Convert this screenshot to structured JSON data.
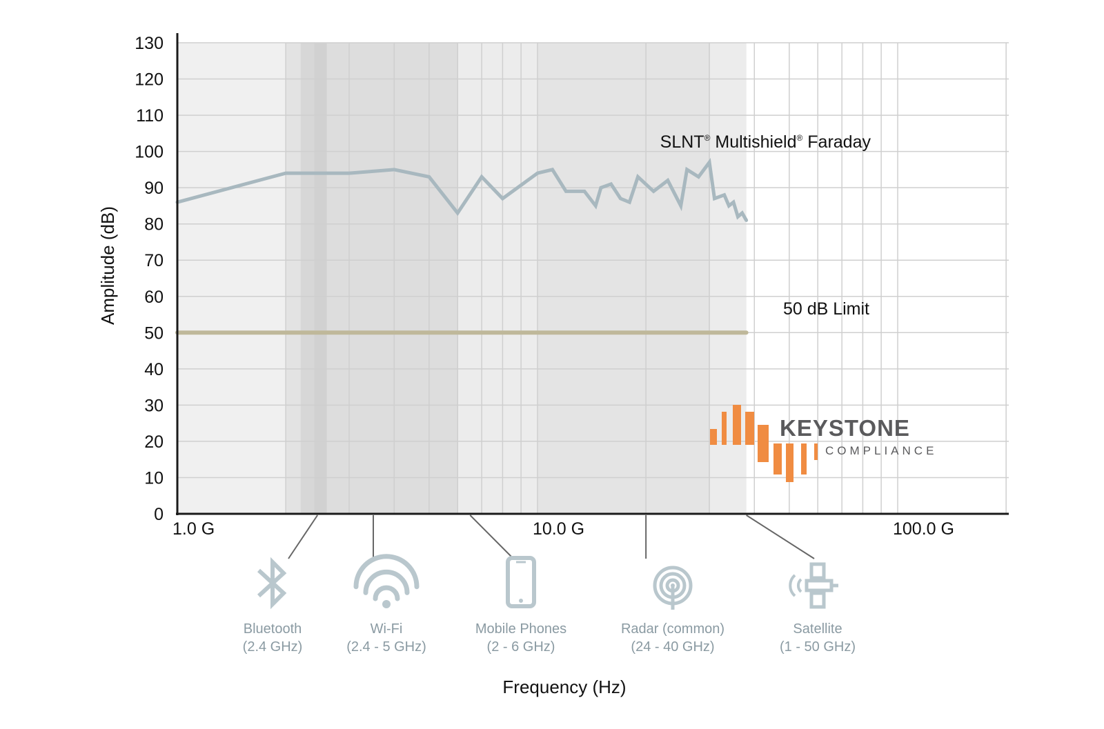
{
  "chart_data": {
    "type": "line",
    "xlabel": "Frequency (Hz)",
    "ylabel": "Amplitude (dB)",
    "x_scale": "log",
    "xlim": [
      1000000000,
      200000000000
    ],
    "ylim": [
      0,
      130
    ],
    "x_ticks": [
      {
        "value": 1000000000,
        "label": "1.0 G"
      },
      {
        "value": 10000000000,
        "label": "10.0 G"
      },
      {
        "value": 100000000000,
        "label": "100.0 G"
      }
    ],
    "y_ticks": [
      0,
      10,
      20,
      30,
      40,
      50,
      60,
      70,
      80,
      90,
      100,
      110,
      120,
      130
    ],
    "grid": true,
    "series": [
      {
        "name": "SLNT® Multishield® Faraday",
        "label_parts": [
          "SLNT",
          "®",
          " Multishield",
          "®",
          " Faraday"
        ],
        "color": "#a8b8bf",
        "points": [
          [
            1000000000,
            86
          ],
          [
            2000000000,
            94
          ],
          [
            3000000000,
            94
          ],
          [
            4000000000,
            95
          ],
          [
            5000000000,
            93
          ],
          [
            6000000000,
            83
          ],
          [
            7000000000,
            93
          ],
          [
            8000000000,
            87
          ],
          [
            10000000000,
            94
          ],
          [
            11000000000,
            95
          ],
          [
            12000000000,
            89
          ],
          [
            13500000000,
            89
          ],
          [
            14500000000,
            85
          ],
          [
            15000000000,
            90
          ],
          [
            16000000000,
            91
          ],
          [
            17000000000,
            87
          ],
          [
            18000000000,
            86
          ],
          [
            19000000000,
            93
          ],
          [
            21000000000,
            89
          ],
          [
            23000000000,
            92
          ],
          [
            25000000000,
            85
          ],
          [
            26000000000,
            95
          ],
          [
            28000000000,
            93
          ],
          [
            30000000000,
            97
          ],
          [
            31000000000,
            87
          ],
          [
            33000000000,
            88
          ],
          [
            34000000000,
            85
          ],
          [
            35000000000,
            86
          ],
          [
            36000000000,
            82
          ],
          [
            37000000000,
            83
          ],
          [
            38000000000,
            81
          ]
        ]
      },
      {
        "name": "50 dB Limit",
        "color": "#bfb89a",
        "points": [
          [
            1000000000,
            50
          ],
          [
            38000000000,
            50
          ]
        ]
      }
    ],
    "bands": [
      {
        "from": 1000000000,
        "to": 38000000000,
        "color": "#f0f0f0"
      },
      {
        "from": 2000000000,
        "to": 6000000000,
        "color": "#e3e3e3"
      },
      {
        "from": 6000000000,
        "to": 38000000000,
        "color": "#ececec"
      },
      {
        "from": 10000000000,
        "to": 30000000000,
        "color": "#e4e4e4"
      },
      {
        "from": 2200000000,
        "to": 2450000000,
        "color": "#d7d7d7"
      },
      {
        "from": 2450000000,
        "to": 6000000000,
        "color": "#dddddd"
      },
      {
        "from": 2400000000,
        "to": 2600000000,
        "color": "#d1d1d1"
      }
    ],
    "applications": [
      {
        "name": "Bluetooth",
        "range": "(2.4 GHz)",
        "icon": "bluetooth-icon",
        "marker_freq": 2450000000
      },
      {
        "name": "Wi-Fi",
        "range": "(2.4 - 5 GHz)",
        "icon": "wifi-icon",
        "marker_freq": 3500000000
      },
      {
        "name": "Mobile Phones",
        "range": "(2 - 6 GHz)",
        "icon": "mobile-phone-icon",
        "marker_freq": 6500000000
      },
      {
        "name": "Radar (common)",
        "range": "(24 - 40 GHz)",
        "icon": "radar-icon",
        "marker_freq": 20000000000
      },
      {
        "name": "Satellite",
        "range": "(1 - 50 GHz)",
        "icon": "satellite-icon",
        "marker_freq": 38000000000
      }
    ]
  },
  "logo": {
    "name": "KEYSTONE",
    "subtitle": "COMPLIANCE",
    "accent_color": "#f08c42",
    "text_color": "#5a5a5c"
  },
  "colors": {
    "grid": "#cfcfcf",
    "axis": "#1a1a1a",
    "icon": "#b9c7cd",
    "connector": "#666666"
  }
}
